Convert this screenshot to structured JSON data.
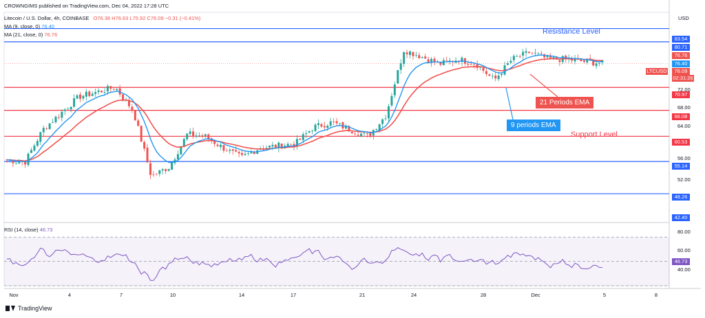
{
  "header": {
    "publisher_line": "CROWNGIMS published on TradingView.com, Dec 04, 2022 17:28 UTC",
    "symbol": "Litecoin / U.S. Dollar, 4h, COINBASE",
    "ohlc": "O76.38 H76.63 L75.92 C76.09 −0.31 (−0.41%)",
    "ma9": "MA (9, close, 0)",
    "ma9_value": "76.40",
    "ma21": "MA (21, close, 0)",
    "ma21_value": "76.76",
    "currency": "USD"
  },
  "annotations": {
    "resistance": "Resistance Level",
    "support": "Support Level",
    "ema21": "21 Periods EMA",
    "ema9": "9 periods EMA"
  },
  "price_tags": {
    "r1": "83.54",
    "r2": "80.71",
    "ma21": "76.76",
    "ma9": "76.40",
    "ltc_label": "LTCUSD",
    "last": "76.09",
    "countdown": "02:31:26",
    "s1": "70.97",
    "s2": "66.08",
    "s3": "60.53",
    "s4": "55.14",
    "s5": "48.26",
    "bottom": "42.40"
  },
  "price_ticks": [
    "72.00",
    "68.00",
    "64.00",
    "60.00",
    "56.00",
    "52.00"
  ],
  "rsi": {
    "title": "RSI (14, close)",
    "value": "46.73",
    "ticks": [
      "80.00",
      "60.00",
      "40.00"
    ]
  },
  "x_ticks": [
    "Nov",
    "4",
    "7",
    "10",
    "14",
    "17",
    "21",
    "24",
    "28",
    "Dec",
    "5",
    "8"
  ],
  "footer": "TradingView",
  "colors": {
    "up": "#26a69a",
    "down": "#ef5350",
    "ema9": "#2196f3",
    "ema21": "#ef5350",
    "resistance": "#2962ff",
    "support": "#f23645",
    "rsi": "#7e57c2"
  },
  "chart_data": {
    "type": "candlestick",
    "ylim": [
      42.4,
      87
    ],
    "horizontal_levels": [
      {
        "value": 83.54,
        "role": "resistance",
        "color": "#2962ff"
      },
      {
        "value": 80.71,
        "role": "resistance",
        "color": "#2962ff"
      },
      {
        "value": 70.97,
        "role": "support",
        "color": "#f23645"
      },
      {
        "value": 66.08,
        "role": "support",
        "color": "#f23645"
      },
      {
        "value": 60.53,
        "role": "support",
        "color": "#f23645"
      },
      {
        "value": 55.14,
        "role": "support",
        "color": "#2962ff"
      },
      {
        "value": 48.26,
        "role": "support",
        "color": "#2962ff"
      }
    ],
    "price_path": [
      [
        "Nov 1",
        55.5
      ],
      [
        "Nov 2",
        55.0
      ],
      [
        "Nov 3",
        62.0
      ],
      [
        "Nov 4",
        65.5
      ],
      [
        "Nov 5",
        69.0
      ],
      [
        "Nov 6",
        70.0
      ],
      [
        "Nov 7",
        71.0
      ],
      [
        "Nov 8",
        66.0
      ],
      [
        "Nov 9",
        52.0
      ],
      [
        "Nov 10",
        54.0
      ],
      [
        "Nov 11",
        61.0
      ],
      [
        "Nov 12",
        60.5
      ],
      [
        "Nov 13",
        58.0
      ],
      [
        "Nov 14",
        56.0
      ],
      [
        "Nov 15",
        58.0
      ],
      [
        "Nov 16",
        58.5
      ],
      [
        "Nov 17",
        59.0
      ],
      [
        "Nov 18",
        62.5
      ],
      [
        "Nov 19",
        63.5
      ],
      [
        "Nov 20",
        62.0
      ],
      [
        "Nov 21",
        60.5
      ],
      [
        "Nov 22",
        65.0
      ],
      [
        "Nov 23",
        79.0
      ],
      [
        "Nov 24",
        77.5
      ],
      [
        "Nov 25",
        76.0
      ],
      [
        "Nov 26",
        77.0
      ],
      [
        "Nov 27",
        76.0
      ],
      [
        "Nov 28",
        72.5
      ],
      [
        "Nov 29",
        77.0
      ],
      [
        "Nov 30",
        78.5
      ],
      [
        "Dec 1",
        77.0
      ],
      [
        "Dec 2",
        77.0
      ],
      [
        "Dec 3",
        76.5
      ],
      [
        "Dec 4",
        76.1
      ]
    ],
    "rsi_range": [
      30,
      82
    ],
    "rsi_levels": [
      70,
      50,
      30
    ]
  }
}
